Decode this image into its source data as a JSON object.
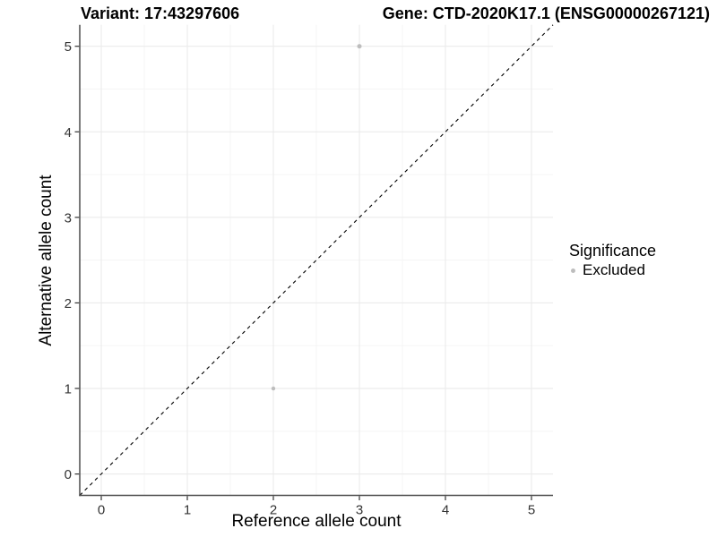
{
  "header": {
    "variant_title": "Variant: 17:43297606",
    "gene_title": "Gene: CTD-2020K17.1 (ENSG00000267121)"
  },
  "chart_data": {
    "type": "scatter",
    "title": "Variant: 17:43297606 / Gene: CTD-2020K17.1 (ENSG00000267121)",
    "xlabel": "Reference allele count",
    "ylabel": "Alternative allele count",
    "xlim": [
      -0.25,
      5.25
    ],
    "ylim": [
      -0.25,
      5.25
    ],
    "x_ticks": [
      0,
      1,
      2,
      3,
      4,
      5
    ],
    "y_ticks": [
      0,
      1,
      2,
      3,
      4,
      5
    ],
    "grid": "major+minor",
    "points": [
      {
        "x": 3,
        "y": 5,
        "series": "Excluded",
        "r": 2.5
      },
      {
        "x": 2,
        "y": 1,
        "series": "Excluded",
        "r": 2.2
      }
    ],
    "reference_line": {
      "type": "identity y=x",
      "style": "dashed",
      "from": [
        -0.25,
        -0.25
      ],
      "to": [
        5.25,
        5.25
      ]
    },
    "legend": {
      "title": "Significance",
      "position": "right",
      "entries": [
        {
          "label": "Excluded",
          "color": "#bdbdbd"
        }
      ]
    }
  },
  "colors": {
    "background": "#ffffff",
    "point": "#bdbdbd",
    "grid_major": "#ebebeb",
    "grid_minor": "#f5f5f5",
    "axis_line": "#4d4d4d",
    "tick_mark": "#333333",
    "tick_label": "#333333",
    "dashed_line": "#000000",
    "text": "#000000"
  }
}
